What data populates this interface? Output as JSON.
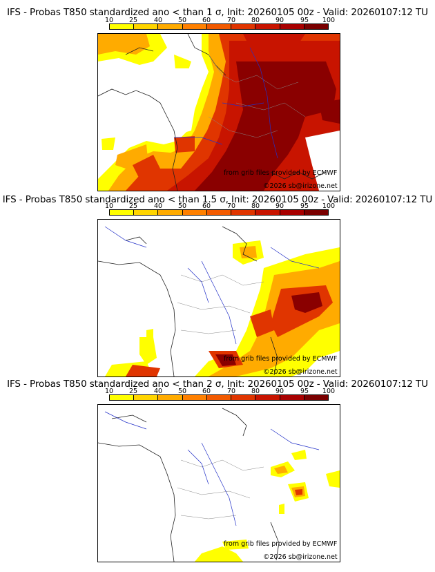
{
  "colorbar": {
    "ticks": [
      "10",
      "25",
      "40",
      "50",
      "60",
      "70",
      "80",
      "90",
      "95",
      "100"
    ],
    "colors": [
      "#ffff00",
      "#ffd500",
      "#ffab00",
      "#ff8000",
      "#f25a00",
      "#e03500",
      "#c81400",
      "#a80000",
      "#7a0000"
    ]
  },
  "panels": [
    {
      "title": "IFS - Probas T850  standardized ano < than 1 σ, Init: 20260105 00z - Valid: 20260107:12 TU",
      "credit_grib": "from grib files provided by ECMWF",
      "credit_site": "©2026 sb@irizone.net"
    },
    {
      "title": "IFS - Probas T850  standardized ano < than 1.5 σ, Init: 20260105 00z - Valid: 20260107:12 TU",
      "credit_grib": "from grib files provided by ECMWF",
      "credit_site": "©2026 sb@irizone.net"
    },
    {
      "title": "IFS - Probas T850  standardized ano < than 2 σ, Init: 20260105 00z - Valid: 20260107:12 TU",
      "credit_grib": "from grib files provided by ECMWF",
      "credit_site": "©2026 sb@irizone.net"
    }
  ]
}
